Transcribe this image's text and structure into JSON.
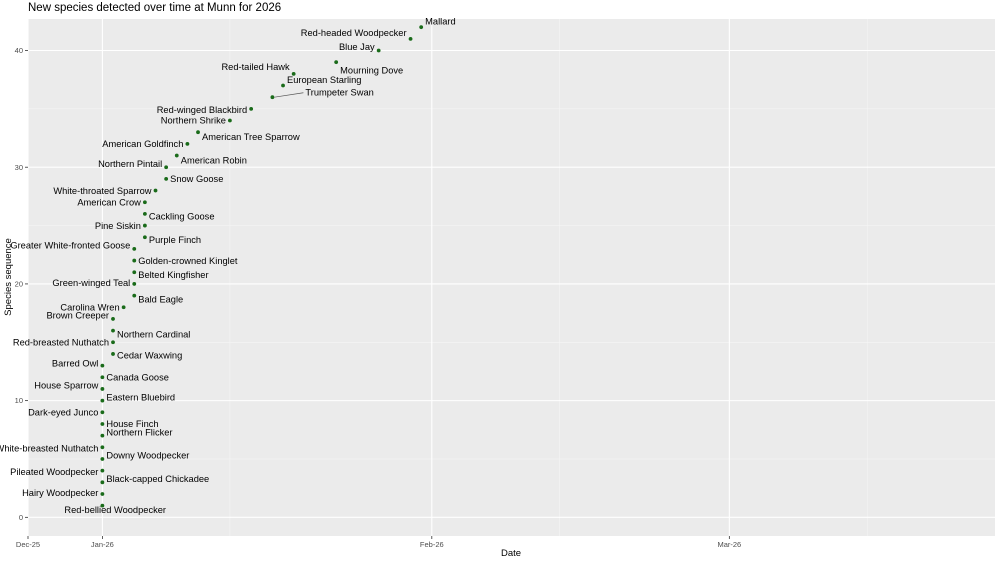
{
  "chart_data": {
    "type": "scatter",
    "title": "New species detected over time at Munn for 2026",
    "xlabel": "Date",
    "ylabel": "Species sequence",
    "x_ticks": [
      "Dec-25",
      "Jan-26",
      "Feb-26",
      "Mar-26"
    ],
    "y_ticks": [
      "0",
      "10",
      "20",
      "30",
      "40"
    ],
    "xlim": [
      "2025-12-25",
      "2026-03-26"
    ],
    "ylim": [
      0,
      42
    ],
    "grid": true,
    "background": "panel-grey",
    "point_color": "#1a6b1a",
    "panel_color": "#ebebeb",
    "points": [
      {
        "n": 1,
        "date": "2026-01-01",
        "species": "Red-bellied Woodpecker"
      },
      {
        "n": 2,
        "date": "2026-01-01",
        "species": "Hairy Woodpecker"
      },
      {
        "n": 3,
        "date": "2026-01-01",
        "species": "Black-capped Chickadee"
      },
      {
        "n": 4,
        "date": "2026-01-01",
        "species": "Pileated Woodpecker"
      },
      {
        "n": 5,
        "date": "2026-01-01",
        "species": "Downy Woodpecker"
      },
      {
        "n": 6,
        "date": "2026-01-01",
        "species": "White-breasted Nuthatch"
      },
      {
        "n": 7,
        "date": "2026-01-01",
        "species": "Northern Flicker"
      },
      {
        "n": 8,
        "date": "2026-01-01",
        "species": "House Finch"
      },
      {
        "n": 9,
        "date": "2026-01-01",
        "species": "Dark-eyed Junco"
      },
      {
        "n": 10,
        "date": "2026-01-01",
        "species": "Eastern Bluebird"
      },
      {
        "n": 11,
        "date": "2026-01-01",
        "species": "House Sparrow"
      },
      {
        "n": 12,
        "date": "2026-01-01",
        "species": "Canada Goose"
      },
      {
        "n": 13,
        "date": "2026-01-01",
        "species": "Barred Owl"
      },
      {
        "n": 14,
        "date": "2026-01-02",
        "species": "Cedar Waxwing"
      },
      {
        "n": 15,
        "date": "2026-01-02",
        "species": "Red-breasted Nuthatch"
      },
      {
        "n": 16,
        "date": "2026-01-02",
        "species": "Northern Cardinal"
      },
      {
        "n": 17,
        "date": "2026-01-02",
        "species": "Brown Creeper"
      },
      {
        "n": 18,
        "date": "2026-01-03",
        "species": "Carolina Wren"
      },
      {
        "n": 19,
        "date": "2026-01-04",
        "species": "Bald Eagle"
      },
      {
        "n": 20,
        "date": "2026-01-04",
        "species": "Green-winged Teal"
      },
      {
        "n": 21,
        "date": "2026-01-04",
        "species": "Belted Kingfisher"
      },
      {
        "n": 22,
        "date": "2026-01-04",
        "species": "Golden-crowned Kinglet"
      },
      {
        "n": 23,
        "date": "2026-01-04",
        "species": "Greater White-fronted Goose"
      },
      {
        "n": 24,
        "date": "2026-01-05",
        "species": "Purple Finch"
      },
      {
        "n": 25,
        "date": "2026-01-05",
        "species": "Pine Siskin"
      },
      {
        "n": 26,
        "date": "2026-01-05",
        "species": "Cackling Goose"
      },
      {
        "n": 27,
        "date": "2026-01-05",
        "species": "American Crow"
      },
      {
        "n": 28,
        "date": "2026-01-06",
        "species": "White-throated Sparrow"
      },
      {
        "n": 29,
        "date": "2026-01-07",
        "species": "Snow Goose"
      },
      {
        "n": 30,
        "date": "2026-01-07",
        "species": "Northern Pintail"
      },
      {
        "n": 31,
        "date": "2026-01-08",
        "species": "American Robin"
      },
      {
        "n": 32,
        "date": "2026-01-09",
        "species": "American Goldfinch"
      },
      {
        "n": 33,
        "date": "2026-01-10",
        "species": "American Tree Sparrow"
      },
      {
        "n": 34,
        "date": "2026-01-13",
        "species": "Northern Shrike"
      },
      {
        "n": 35,
        "date": "2026-01-15",
        "species": "Red-winged Blackbird"
      },
      {
        "n": 36,
        "date": "2026-01-17",
        "species": "Trumpeter Swan"
      },
      {
        "n": 37,
        "date": "2026-01-18",
        "species": "European Starling"
      },
      {
        "n": 38,
        "date": "2026-01-19",
        "species": "Red-tailed Hawk"
      },
      {
        "n": 39,
        "date": "2026-01-23",
        "species": "Mourning Dove"
      },
      {
        "n": 40,
        "date": "2026-01-27",
        "species": "Blue Jay"
      },
      {
        "n": 41,
        "date": "2026-01-30",
        "species": "Red-headed Woodpecker"
      },
      {
        "n": 42,
        "date": "2026-01-31",
        "species": "Mallard"
      }
    ]
  }
}
